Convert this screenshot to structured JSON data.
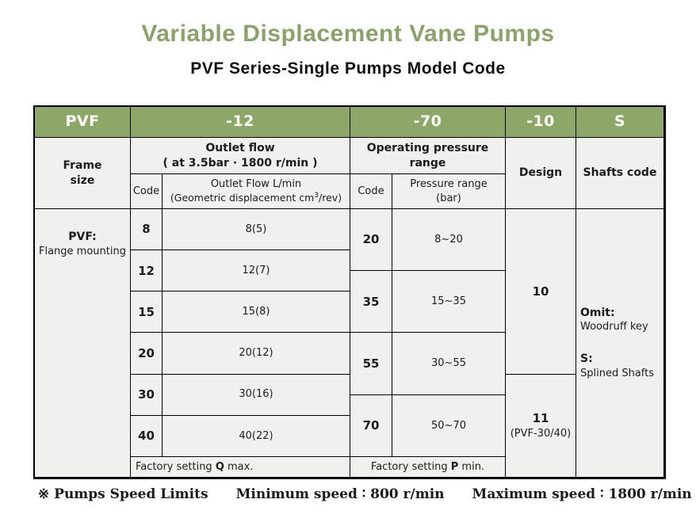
{
  "page": {
    "title": "Variable Displacement Vane Pumps",
    "subtitle": "PVF Series-Single Pumps Model Code",
    "title_color": "#89a36a",
    "header_bg": "#8ca768",
    "cell_bg": "#f0f0ee"
  },
  "model_code": {
    "pvf": "PVF",
    "flow": "-12",
    "pressure": "-70",
    "design": "-10",
    "shaft": "S"
  },
  "headers": {
    "frame_size": "Frame\nsize",
    "outlet_flow_line1": "Outlet flow",
    "outlet_flow_line2": "( at 3.5bar · 1800 r/min )",
    "flow_code": "Code",
    "flow_sub_line1": "Outlet Flow L/min",
    "geo_prefix": "(Geometric displacement cm",
    "geo_sup": "3",
    "geo_suffix": "/rev)",
    "operating_pressure": "Operating pressure range",
    "pressure_code": "Code",
    "pressure_range": "Pressure range\n(bar)",
    "design": "Design",
    "shafts_code": "Shafts code"
  },
  "frame": {
    "name": "PVF:",
    "desc": "Flange mounting"
  },
  "flow_rows": [
    {
      "code": "8",
      "value": "8(5)"
    },
    {
      "code": "12",
      "value": "12(7)"
    },
    {
      "code": "15",
      "value": "15(8)"
    },
    {
      "code": "20",
      "value": "20(12)"
    },
    {
      "code": "30",
      "value": "30(16)"
    },
    {
      "code": "40",
      "value": "40(22)"
    }
  ],
  "pressure_rows": [
    {
      "code": "20",
      "range": "8~20"
    },
    {
      "code": "35",
      "range": "15~35"
    },
    {
      "code": "55",
      "range": "30~55"
    },
    {
      "code": "70",
      "range": "50~70"
    }
  ],
  "design_options": [
    {
      "value": "10",
      "note": ""
    },
    {
      "value": "11",
      "note": "(PVF-30/40)"
    }
  ],
  "shaft_options": [
    {
      "code": "Omit:",
      "desc": "Woodruff key"
    },
    {
      "code": "S:",
      "desc": "Splined Shafts"
    }
  ],
  "factory": {
    "flow_prefix": "Factory setting ",
    "flow_bold": "Q",
    "flow_suffix": " max.",
    "pressure_prefix": "Factory setting ",
    "pressure_bold": "P",
    "pressure_suffix": " min."
  },
  "footnote": {
    "label": "※ Pumps Speed Limits",
    "min": "Minimum speed ∶ 800 r/min",
    "max": "Maximum speed ∶ 1800 r/min"
  }
}
